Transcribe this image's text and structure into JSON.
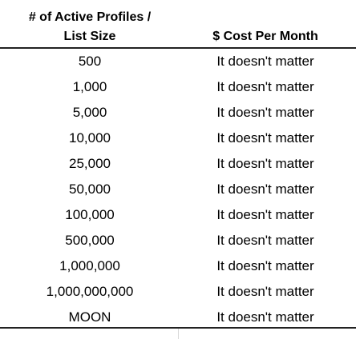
{
  "table": {
    "header": {
      "col1": [
        "# of Active Profiles /",
        "List Size"
      ],
      "col2": "$ Cost Per Month"
    },
    "rows": [
      [
        "500",
        "It doesn't matter"
      ],
      [
        "1,000",
        "It doesn't matter"
      ],
      [
        "5,000",
        "It doesn't matter"
      ],
      [
        "10,000",
        "It doesn't matter"
      ],
      [
        "25,000",
        "It doesn't matter"
      ],
      [
        "50,000",
        "It doesn't matter"
      ],
      [
        "100,000",
        "It doesn't matter"
      ],
      [
        "500,000",
        "It doesn't matter"
      ],
      [
        "1,000,000",
        "It doesn't matter"
      ],
      [
        "1,000,000,000",
        "It doesn't matter"
      ],
      [
        "MOON",
        "It doesn't matter"
      ]
    ]
  }
}
